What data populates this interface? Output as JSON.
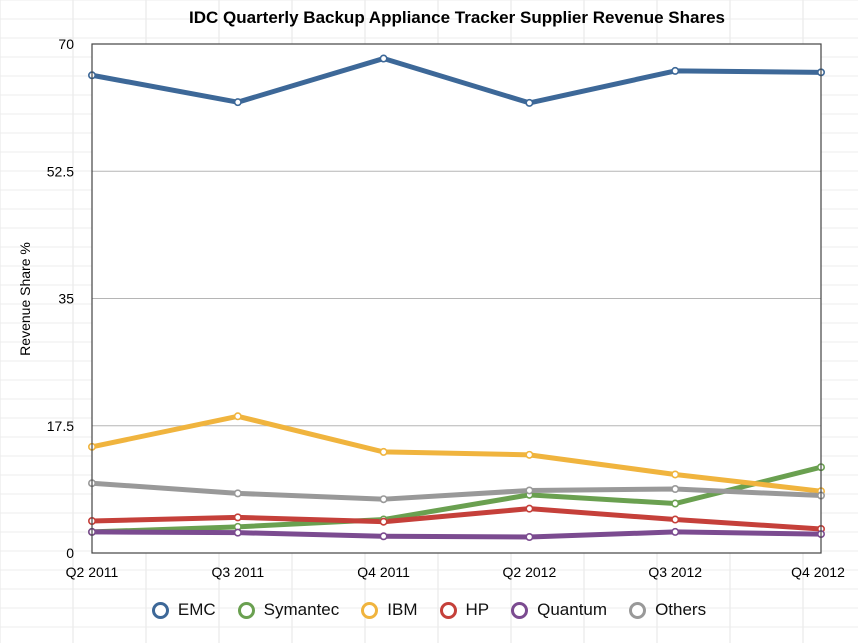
{
  "chart_data": {
    "type": "line",
    "title": "IDC Quarterly Backup Appliance Tracker Supplier Revenue Shares",
    "xlabel": "",
    "ylabel": "Revenue Share %",
    "categories": [
      "Q2 2011",
      "Q3 2011",
      "Q4 2011",
      "Q2 2012",
      "Q3 2012",
      "Q4 2012"
    ],
    "ylim": [
      0,
      70
    ],
    "yticks": [
      "0",
      "17.5",
      "35",
      "52.5",
      "70"
    ],
    "grid": true,
    "legend_position": "bottom",
    "series": [
      {
        "name": "EMC",
        "color": "#3d6898",
        "values": [
          65.7,
          62.0,
          68.0,
          61.9,
          66.3,
          66.1
        ]
      },
      {
        "name": "Symantec",
        "color": "#6aa050",
        "values": [
          2.9,
          3.6,
          4.6,
          8.0,
          6.8,
          11.8
        ]
      },
      {
        "name": "IBM",
        "color": "#f0b43e",
        "values": [
          14.6,
          18.8,
          13.9,
          13.5,
          10.8,
          8.5
        ]
      },
      {
        "name": "HP",
        "color": "#c5403a",
        "values": [
          4.4,
          4.9,
          4.3,
          6.1,
          4.6,
          3.3
        ]
      },
      {
        "name": "Quantum",
        "color": "#7b4b90",
        "values": [
          2.9,
          2.8,
          2.3,
          2.2,
          2.9,
          2.6
        ]
      },
      {
        "name": "Others",
        "color": "#999999",
        "values": [
          9.6,
          8.2,
          7.4,
          8.6,
          8.8,
          7.9
        ]
      }
    ]
  }
}
